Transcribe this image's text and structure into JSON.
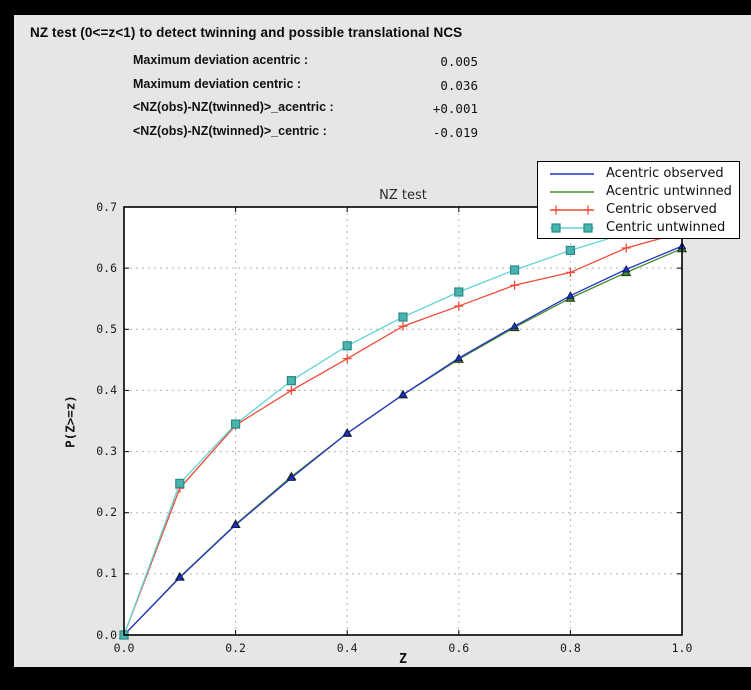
{
  "window": {
    "background": "#000000",
    "panel_background": "#e6e6e6"
  },
  "header": {
    "title": "NZ test (0<=z<1) to detect twinning and possible translational NCS"
  },
  "stats": [
    {
      "label": "Maximum deviation acentric :",
      "value": "0.005"
    },
    {
      "label": "Maximum deviation centric :",
      "value": "0.036"
    },
    {
      "label": "<NZ(obs)-NZ(twinned)>_acentric :",
      "value": "+0.001"
    },
    {
      "label": "<NZ(obs)-NZ(twinned)>_centric :",
      "value": "-0.019"
    }
  ],
  "chart_data": {
    "type": "line",
    "title": "NZ test",
    "xlabel": "Z",
    "ylabel": "P(Z>=z)",
    "xlim": [
      0.0,
      1.0
    ],
    "ylim": [
      0.0,
      0.7
    ],
    "grid": true,
    "legend_position": "top-right",
    "xticks": [
      {
        "v": 0.0,
        "label": "0.0"
      },
      {
        "v": 0.2,
        "label": "0.2"
      },
      {
        "v": 0.4,
        "label": "0.4"
      },
      {
        "v": 0.6,
        "label": "0.6"
      },
      {
        "v": 0.8,
        "label": "0.8"
      },
      {
        "v": 1.0,
        "label": "1.0"
      }
    ],
    "yticks": [
      {
        "v": 0.0,
        "label": "0.0"
      },
      {
        "v": 0.1,
        "label": "0.1"
      },
      {
        "v": 0.2,
        "label": "0.2"
      },
      {
        "v": 0.3,
        "label": "0.3"
      },
      {
        "v": 0.4,
        "label": "0.4"
      },
      {
        "v": 0.5,
        "label": "0.5"
      },
      {
        "v": 0.6,
        "label": "0.6"
      },
      {
        "v": 0.7,
        "label": "0.7"
      }
    ],
    "x": [
      0.0,
      0.1,
      0.2,
      0.3,
      0.4,
      0.5,
      0.6,
      0.7,
      0.8,
      0.9,
      1.0
    ],
    "series": [
      {
        "name": "Acentric observed",
        "color": "#2433c4",
        "marker": "triangle",
        "marker_fill": "#2433c4",
        "marker_edge": "#101b66",
        "marker_size": 3.4,
        "legend_markers": false,
        "values": [
          0.0,
          0.094,
          0.18,
          0.257,
          0.33,
          0.393,
          0.453,
          0.505,
          0.555,
          0.598,
          0.636
        ]
      },
      {
        "name": "Acentric untwinned",
        "color": "#3e8d28",
        "marker": "triangle",
        "marker_fill": "#3e8d28",
        "marker_edge": "#1c3312",
        "marker_size": 4.2,
        "legend_markers": false,
        "values": [
          0.0,
          0.095,
          0.181,
          0.259,
          0.33,
          0.393,
          0.451,
          0.503,
          0.551,
          0.593,
          0.632
        ]
      },
      {
        "name": "Centric observed",
        "color": "#ee4b38",
        "marker": "plus",
        "marker_fill": "#ee4b38",
        "marker_edge": "#ee4b38",
        "marker_size": 4.5,
        "legend_markers": true,
        "values": [
          0.0,
          0.24,
          0.343,
          0.4,
          0.452,
          0.505,
          0.538,
          0.572,
          0.593,
          0.633,
          0.658
        ]
      },
      {
        "name": "Centric untwinned",
        "color": "#63d4d4",
        "marker": "square",
        "marker_fill": "#48b4b0",
        "marker_edge": "#2b8a86",
        "marker_size": 4,
        "legend_markers": true,
        "values": [
          0.0,
          0.248,
          0.345,
          0.416,
          0.473,
          0.52,
          0.561,
          0.597,
          0.629,
          0.657,
          0.683
        ]
      }
    ]
  }
}
